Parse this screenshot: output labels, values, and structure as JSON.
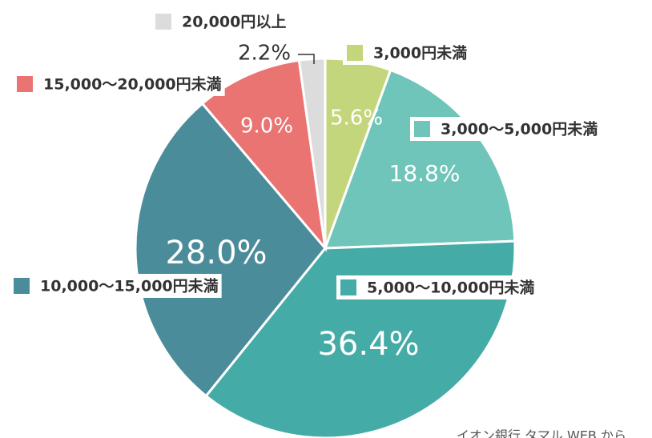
{
  "chart_data": {
    "type": "pie",
    "categories": [
      "3,000円未満",
      "3,000〜5,000円未満",
      "5,000〜10,000円未満",
      "10,000〜15,000円未満",
      "15,000〜20,000円未満",
      "20,000円以上"
    ],
    "values": [
      5.6,
      18.8,
      36.4,
      28.0,
      9.0,
      2.2
    ],
    "value_labels": [
      "5.6%",
      "18.8%",
      "36.4%",
      "28.0%",
      "9.0%",
      "2.2%"
    ],
    "colors": [
      "#c4d67b",
      "#6fc5b9",
      "#44aba6",
      "#4b8c9b",
      "#e97472",
      "#dcdcdc"
    ],
    "source": "イオン銀行 タマル WEB から"
  }
}
